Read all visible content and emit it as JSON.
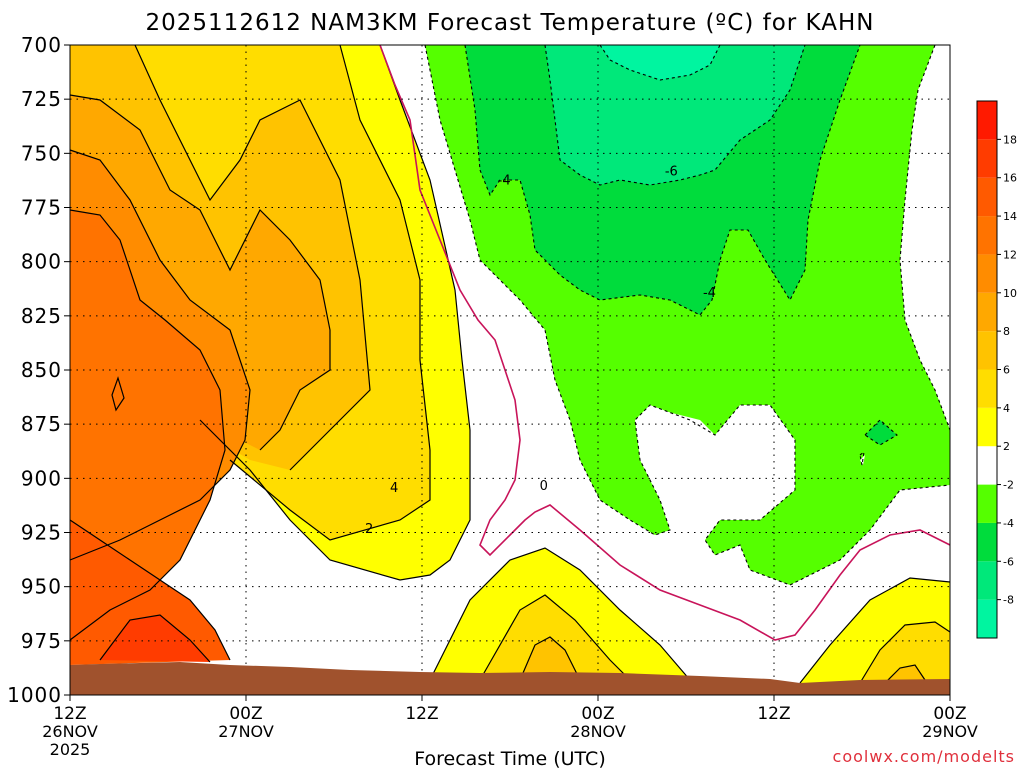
{
  "chart_data": {
    "type": "heatmap",
    "title": "2025112612 NAM3KM Forecast Temperature (ºC) for KAHN",
    "xlabel": "Forecast Time (UTC)",
    "credit": "coolwx.com/modelts",
    "y_axis": {
      "ticks": [
        "700",
        "725",
        "750",
        "775",
        "800",
        "825",
        "850",
        "875",
        "900",
        "925",
        "950",
        "975",
        "1000"
      ],
      "values": [
        700,
        725,
        750,
        775,
        800,
        825,
        850,
        875,
        900,
        925,
        950,
        975,
        1000
      ],
      "range": [
        700,
        1000
      ],
      "inverted": true
    },
    "x_axis": {
      "ticks": [
        {
          "time": "12Z",
          "date": "26NOV",
          "year": "2025",
          "hours": 0
        },
        {
          "time": "00Z",
          "date": "27NOV",
          "year": "",
          "hours": 12
        },
        {
          "time": "12Z",
          "date": "",
          "year": "",
          "hours": 24
        },
        {
          "time": "00Z",
          "date": "28NOV",
          "year": "",
          "hours": 36
        },
        {
          "time": "12Z",
          "date": "",
          "year": "",
          "hours": 48
        },
        {
          "time": "00Z",
          "date": "29NOV",
          "year": "",
          "hours": 60
        }
      ],
      "range_hours": [
        0,
        60
      ]
    },
    "grid": true,
    "colorbar": {
      "placement": "right",
      "bins": [
        {
          "lo": -10,
          "hi": -8,
          "color": "#00f5a0"
        },
        {
          "lo": -8,
          "hi": -6,
          "color": "#00e87a"
        },
        {
          "lo": -6,
          "hi": -4,
          "color": "#00dc3c"
        },
        {
          "lo": -4,
          "hi": -2,
          "color": "#55ff00"
        },
        {
          "lo": -2,
          "hi": 2,
          "color": "#ffffff"
        },
        {
          "lo": 2,
          "hi": 4,
          "color": "#ffff00"
        },
        {
          "lo": 4,
          "hi": 6,
          "color": "#ffdd00"
        },
        {
          "lo": 6,
          "hi": 8,
          "color": "#ffc300"
        },
        {
          "lo": 8,
          "hi": 10,
          "color": "#ffa800"
        },
        {
          "lo": 10,
          "hi": 12,
          "color": "#ff8c00"
        },
        {
          "lo": 12,
          "hi": 14,
          "color": "#ff7300"
        },
        {
          "lo": 14,
          "hi": 16,
          "color": "#ff5a00"
        },
        {
          "lo": 16,
          "hi": 18,
          "color": "#ff3c00"
        },
        {
          "lo": 18,
          "hi": 20,
          "color": "#ff1a00"
        }
      ],
      "labels": [
        "-8",
        "-6",
        "-4",
        "-2",
        "2",
        "4",
        "6",
        "8",
        "10",
        "12",
        "14",
        "16",
        "18"
      ]
    },
    "contour_labels": [
      {
        "text": "-4",
        "hours": 29.6,
        "p": 762
      },
      {
        "text": "-6",
        "hours": 41.0,
        "p": 758
      },
      {
        "text": "-4",
        "hours": 43.6,
        "p": 814
      },
      {
        "text": "4",
        "hours": 22.1,
        "p": 904
      },
      {
        "text": "2",
        "hours": 20.4,
        "p": 923
      },
      {
        "text": "0",
        "hours": 32.3,
        "p": 903
      }
    ],
    "ground_color": "#a0522d",
    "zero_line_color": "#c8145a"
  }
}
